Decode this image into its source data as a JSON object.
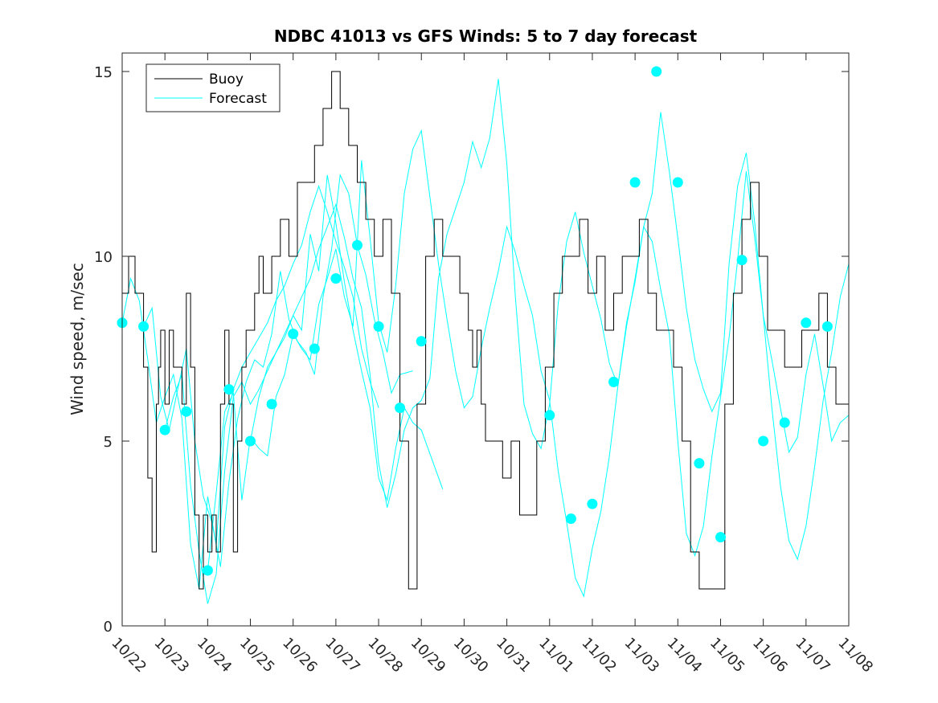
{
  "chart_data": {
    "type": "line",
    "title": "NDBC 41013 vs GFS Winds: 5 to 7 day forecast",
    "xlabel": "",
    "ylabel": "Wind speed, m/sec",
    "xlim": [
      0,
      17
    ],
    "ylim": [
      0,
      15.5
    ],
    "x_ticks": [
      0,
      1,
      2,
      3,
      4,
      5,
      6,
      7,
      8,
      9,
      10,
      11,
      12,
      13,
      14,
      15,
      16,
      17
    ],
    "x_tick_labels": [
      "10/22",
      "10/23",
      "10/24",
      "10/25",
      "10/26",
      "10/27",
      "10/28",
      "10/29",
      "10/30",
      "10/31",
      "11/01",
      "11/02",
      "11/03",
      "11/04",
      "11/05",
      "11/06",
      "11/07",
      "11/08"
    ],
    "y_ticks": [
      0,
      5,
      10,
      15
    ],
    "y_tick_labels": [
      "0",
      "5",
      "10",
      "15"
    ],
    "legend": {
      "position": "top-left",
      "entries": [
        "Buoy",
        "Forecast"
      ]
    },
    "colors": {
      "buoy": "#000000",
      "forecast": "#00ffff",
      "axes": "#262626"
    },
    "series": [
      {
        "name": "Buoy",
        "style": "step",
        "x": [
          0,
          0.15,
          0.3,
          0.4,
          0.5,
          0.6,
          0.7,
          0.8,
          0.85,
          0.9,
          1.0,
          1.1,
          1.2,
          1.3,
          1.4,
          1.5,
          1.6,
          1.7,
          1.8,
          1.9,
          2.0,
          2.1,
          2.2,
          2.3,
          2.4,
          2.5,
          2.6,
          2.7,
          2.8,
          2.9,
          3.0,
          3.1,
          3.2,
          3.3,
          3.5,
          3.7,
          3.9,
          4.1,
          4.3,
          4.5,
          4.7,
          4.9,
          5.1,
          5.3,
          5.5,
          5.7,
          5.9,
          6.1,
          6.3,
          6.5,
          6.7,
          6.9,
          7.1,
          7.3,
          7.5,
          7.7,
          7.9,
          8.1,
          8.2,
          8.3,
          8.4,
          8.5,
          8.7,
          8.9,
          9.1,
          9.3,
          9.5,
          9.7,
          9.9,
          10.1,
          10.3,
          10.5,
          10.7,
          10.9,
          11.1,
          11.3,
          11.5,
          11.7,
          11.9,
          12.1,
          12.3,
          12.5,
          12.7,
          12.9,
          13.1,
          13.3,
          13.5,
          13.7,
          13.9,
          14.1,
          14.3,
          14.5,
          14.7,
          14.9,
          15.1,
          15.3,
          15.5,
          15.7,
          15.9,
          16.1,
          16.3,
          16.5,
          16.7,
          17.0
        ],
        "y": [
          9,
          10,
          9,
          9,
          7,
          4,
          2,
          6,
          7,
          8,
          6,
          8,
          7,
          7,
          6,
          9,
          7,
          3,
          1,
          3,
          2,
          3,
          2,
          6,
          8,
          6,
          2,
          5,
          7,
          8,
          8,
          9,
          10,
          9,
          10,
          11,
          10,
          12,
          12,
          13,
          14,
          15,
          14,
          13,
          12,
          11,
          10,
          11,
          9,
          5,
          1,
          6,
          10,
          11,
          10,
          10,
          9,
          8,
          7,
          8,
          6,
          5,
          5,
          4,
          5,
          3,
          3,
          5,
          7,
          9,
          10,
          10,
          11,
          9,
          10,
          8,
          9,
          10,
          10,
          11,
          9,
          8,
          8,
          7,
          5,
          2,
          1,
          1,
          1,
          6,
          9,
          11,
          12,
          10,
          8,
          8,
          7,
          7,
          8,
          8,
          9,
          7,
          6,
          6
        ]
      },
      {
        "name": "Forecast",
        "style": "lines",
        "traces": [
          {
            "x": [
              0,
              0.2,
              0.4,
              0.6,
              0.8,
              1.0,
              1.2,
              1.4,
              1.6,
              1.8,
              2.0,
              2.2,
              2.4,
              2.6,
              2.8,
              3.0,
              3.2,
              3.4,
              3.6,
              3.8,
              4.0,
              4.2,
              4.4,
              4.6,
              4.8,
              5.0,
              5.2,
              5.4,
              5.6,
              5.8,
              6.0
            ],
            "y": [
              8.2,
              9.4,
              8.8,
              7.2,
              5.5,
              6.2,
              6.8,
              5.6,
              2.2,
              1.0,
              3.5,
              2.2,
              5.4,
              6.4,
              7.0,
              7.4,
              7.8,
              8.2,
              8.8,
              9.2,
              9.8,
              10.3,
              11.2,
              11.9,
              11.2,
              10.4,
              9.7,
              8.9,
              7.5,
              6.6,
              5.9
            ]
          },
          {
            "x": [
              0.5,
              0.7,
              0.9,
              1.1,
              1.3,
              1.5,
              1.7,
              1.9,
              2.1,
              2.3,
              2.5,
              2.7,
              2.9,
              3.1,
              3.3,
              3.5,
              3.7,
              3.9,
              4.1,
              4.3,
              4.5,
              4.7,
              4.9,
              5.1,
              5.3,
              5.5,
              5.7,
              5.9,
              6.1,
              6.3,
              6.5,
              6.8
            ],
            "y": [
              8.1,
              8.6,
              6.2,
              5.3,
              6.4,
              7.5,
              5.0,
              3.5,
              2.8,
              1.6,
              3.9,
              5.6,
              6.6,
              7.2,
              7.0,
              7.9,
              9.6,
              8.3,
              7.7,
              7.4,
              6.8,
              8.9,
              10.2,
              12.2,
              11.7,
              10.3,
              9.5,
              8.3,
              7.4,
              6.3,
              6.8,
              6.9
            ]
          },
          {
            "x": [
              1.0,
              1.2,
              1.4,
              1.6,
              1.8,
              2.0,
              2.2,
              2.4,
              2.6,
              2.8,
              3.0,
              3.2,
              3.4,
              3.6,
              3.8,
              4.0,
              4.2,
              4.4,
              4.6,
              4.8,
              5.0,
              5.2,
              5.4,
              5.6,
              5.8,
              6.0,
              6.2,
              6.4,
              6.6,
              6.8,
              7.0,
              7.5
            ],
            "y": [
              5.3,
              6.2,
              6.8,
              3.8,
              2.0,
              0.6,
              1.4,
              4.2,
              6.2,
              6.6,
              6.0,
              6.4,
              6.9,
              7.4,
              7.9,
              8.4,
              8.0,
              10.6,
              9.6,
              12.2,
              10.9,
              9.3,
              8.0,
              6.9,
              5.9,
              4.0,
              3.4,
              4.8,
              5.9,
              5.5,
              5.3,
              3.7
            ]
          },
          {
            "x": [
              2.0,
              2.2,
              2.4,
              2.6,
              2.8,
              3.0,
              3.2,
              3.4,
              3.6,
              3.8,
              4.0,
              4.2,
              4.4,
              4.6,
              4.8,
              5.0,
              5.2,
              5.4,
              5.6,
              5.8,
              6.0,
              6.2,
              6.4,
              6.6,
              6.8,
              7.0,
              7.2,
              7.4,
              7.6,
              7.8,
              8.0,
              8.2,
              8.4,
              8.6,
              8.8,
              9.0,
              9.2,
              9.4,
              9.6,
              9.8,
              10.0,
              10.2,
              10.4,
              10.6,
              10.8,
              11.0,
              11.2,
              11.4,
              11.6,
              11.8,
              12.0,
              12.2,
              12.4,
              12.6,
              12.8,
              13.0,
              13.2,
              13.4,
              13.6,
              13.8,
              14.0,
              14.2,
              14.4,
              14.6,
              14.8,
              15.0,
              15.2,
              15.4,
              15.6,
              15.8,
              16.0,
              16.2,
              16.4,
              16.6,
              16.8,
              17.0
            ],
            "y": [
              1.5,
              3.6,
              5.8,
              6.3,
              3.4,
              5.1,
              4.8,
              4.6,
              6.2,
              6.8,
              7.9,
              7.5,
              7.2,
              8.7,
              9.4,
              10.2,
              8.9,
              8.1,
              12.6,
              10.5,
              8.2,
              7.4,
              9.2,
              11.7,
              12.9,
              13.4,
              11.6,
              9.8,
              8.3,
              6.9,
              5.9,
              6.2,
              7.5,
              8.6,
              9.6,
              10.8,
              10.1,
              9.2,
              8.4,
              6.9,
              6.1,
              4.2,
              2.8,
              1.3,
              0.8,
              2.1,
              3.1,
              4.6,
              6.5,
              8.1,
              9.4,
              10.8,
              11.7,
              13.9,
              12.3,
              10.5,
              8.6,
              7.2,
              6.4,
              5.8,
              6.3,
              9.8,
              11.9,
              12.8,
              10.9,
              8.4,
              5.9,
              3.8,
              2.3,
              1.8,
              2.7,
              4.3,
              6.1,
              7.4,
              8.9,
              9.8
            ]
          },
          {
            "x": [
              3.0,
              3.2,
              3.4,
              3.6,
              3.8,
              4.0,
              4.2,
              4.4,
              4.6,
              4.8,
              5.0,
              5.2,
              5.4,
              5.6,
              5.8,
              6.0,
              6.2,
              6.4,
              6.6,
              6.8,
              7.0,
              7.2,
              7.4,
              7.6,
              7.8,
              8.0,
              8.2,
              8.4,
              8.6,
              8.8,
              9.0,
              9.2,
              9.4,
              9.6,
              9.8,
              10.0,
              10.2,
              10.4,
              10.6,
              10.8,
              11.0,
              11.2,
              11.4,
              11.6,
              11.8,
              12.0,
              12.2,
              12.4,
              12.6,
              12.8,
              13.0,
              13.2,
              13.4,
              13.6,
              13.8,
              14.0,
              14.2,
              14.4,
              14.6,
              14.8,
              15.0,
              15.2,
              15.4,
              15.6,
              15.8,
              16.0,
              16.2,
              16.4,
              16.6,
              16.8,
              17.0
            ],
            "y": [
              5.0,
              6.2,
              7.0,
              7.4,
              7.8,
              8.4,
              8.9,
              9.4,
              10.2,
              10.8,
              11.4,
              10.5,
              9.4,
              8.6,
              6.8,
              4.4,
              3.2,
              4.1,
              5.3,
              5.9,
              6.1,
              6.7,
              9.4,
              10.6,
              11.3,
              12.0,
              13.1,
              12.4,
              13.2,
              14.8,
              12.5,
              8.9,
              6.0,
              5.2,
              4.8,
              6.0,
              8.7,
              10.4,
              11.2,
              10.1,
              9.2,
              8.3,
              7.1,
              6.5,
              8.2,
              9.3,
              10.8,
              10.4,
              9.1,
              7.9,
              5.0,
              2.5,
              1.9,
              2.7,
              4.6,
              6.2,
              7.8,
              9.9,
              12.3,
              10.5,
              8.4,
              7.2,
              5.9,
              4.7,
              5.1,
              6.8,
              7.9,
              6.5,
              5.0,
              5.5,
              5.7
            ]
          }
        ],
        "markers": {
          "x": [
            0,
            0.5,
            1.0,
            1.5,
            2.0,
            2.5,
            3.0,
            3.5,
            4.0,
            4.5,
            5.0,
            5.5,
            6.0,
            6.5,
            7.0,
            10.0,
            10.5,
            11.0,
            11.5,
            12.0,
            12.5,
            13.0,
            13.5,
            14.0,
            14.5,
            15.0,
            15.5,
            16.0,
            16.5
          ],
          "y": [
            8.2,
            8.1,
            5.3,
            5.8,
            1.5,
            6.4,
            5.0,
            6.0,
            7.9,
            7.5,
            9.4,
            10.3,
            8.1,
            5.9,
            7.7,
            5.7,
            2.9,
            3.3,
            6.6,
            12.0,
            15.0,
            12.0,
            4.4,
            2.4,
            9.9,
            5.0,
            5.5,
            8.2,
            8.1
          ]
        }
      }
    ]
  }
}
